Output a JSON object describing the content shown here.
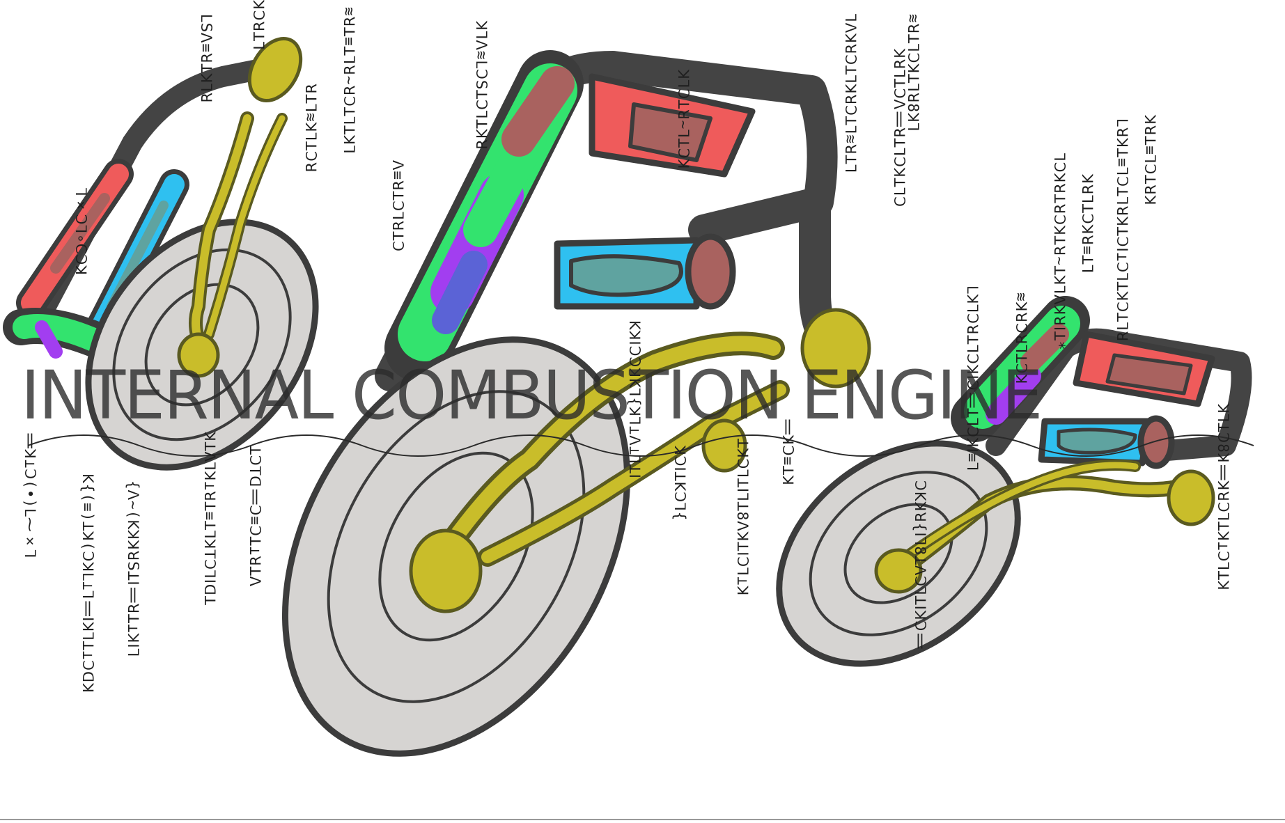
{
  "banner": {
    "text": "INTERNAL COMBUSTION ENGINE"
  },
  "colors": {
    "outline": "#3c3c3c",
    "disc": "#d6d4d2",
    "flame": "#c9bd2a",
    "red": "#ef5b5b",
    "brown": "#a9625f",
    "blue": "#2fc0f0",
    "teal": "#5fa3a0",
    "purple": "#a23ef0",
    "green": "#33e36e"
  },
  "icons": [
    "engine-piece-left",
    "engine-piece-center",
    "engine-piece-right"
  ]
}
